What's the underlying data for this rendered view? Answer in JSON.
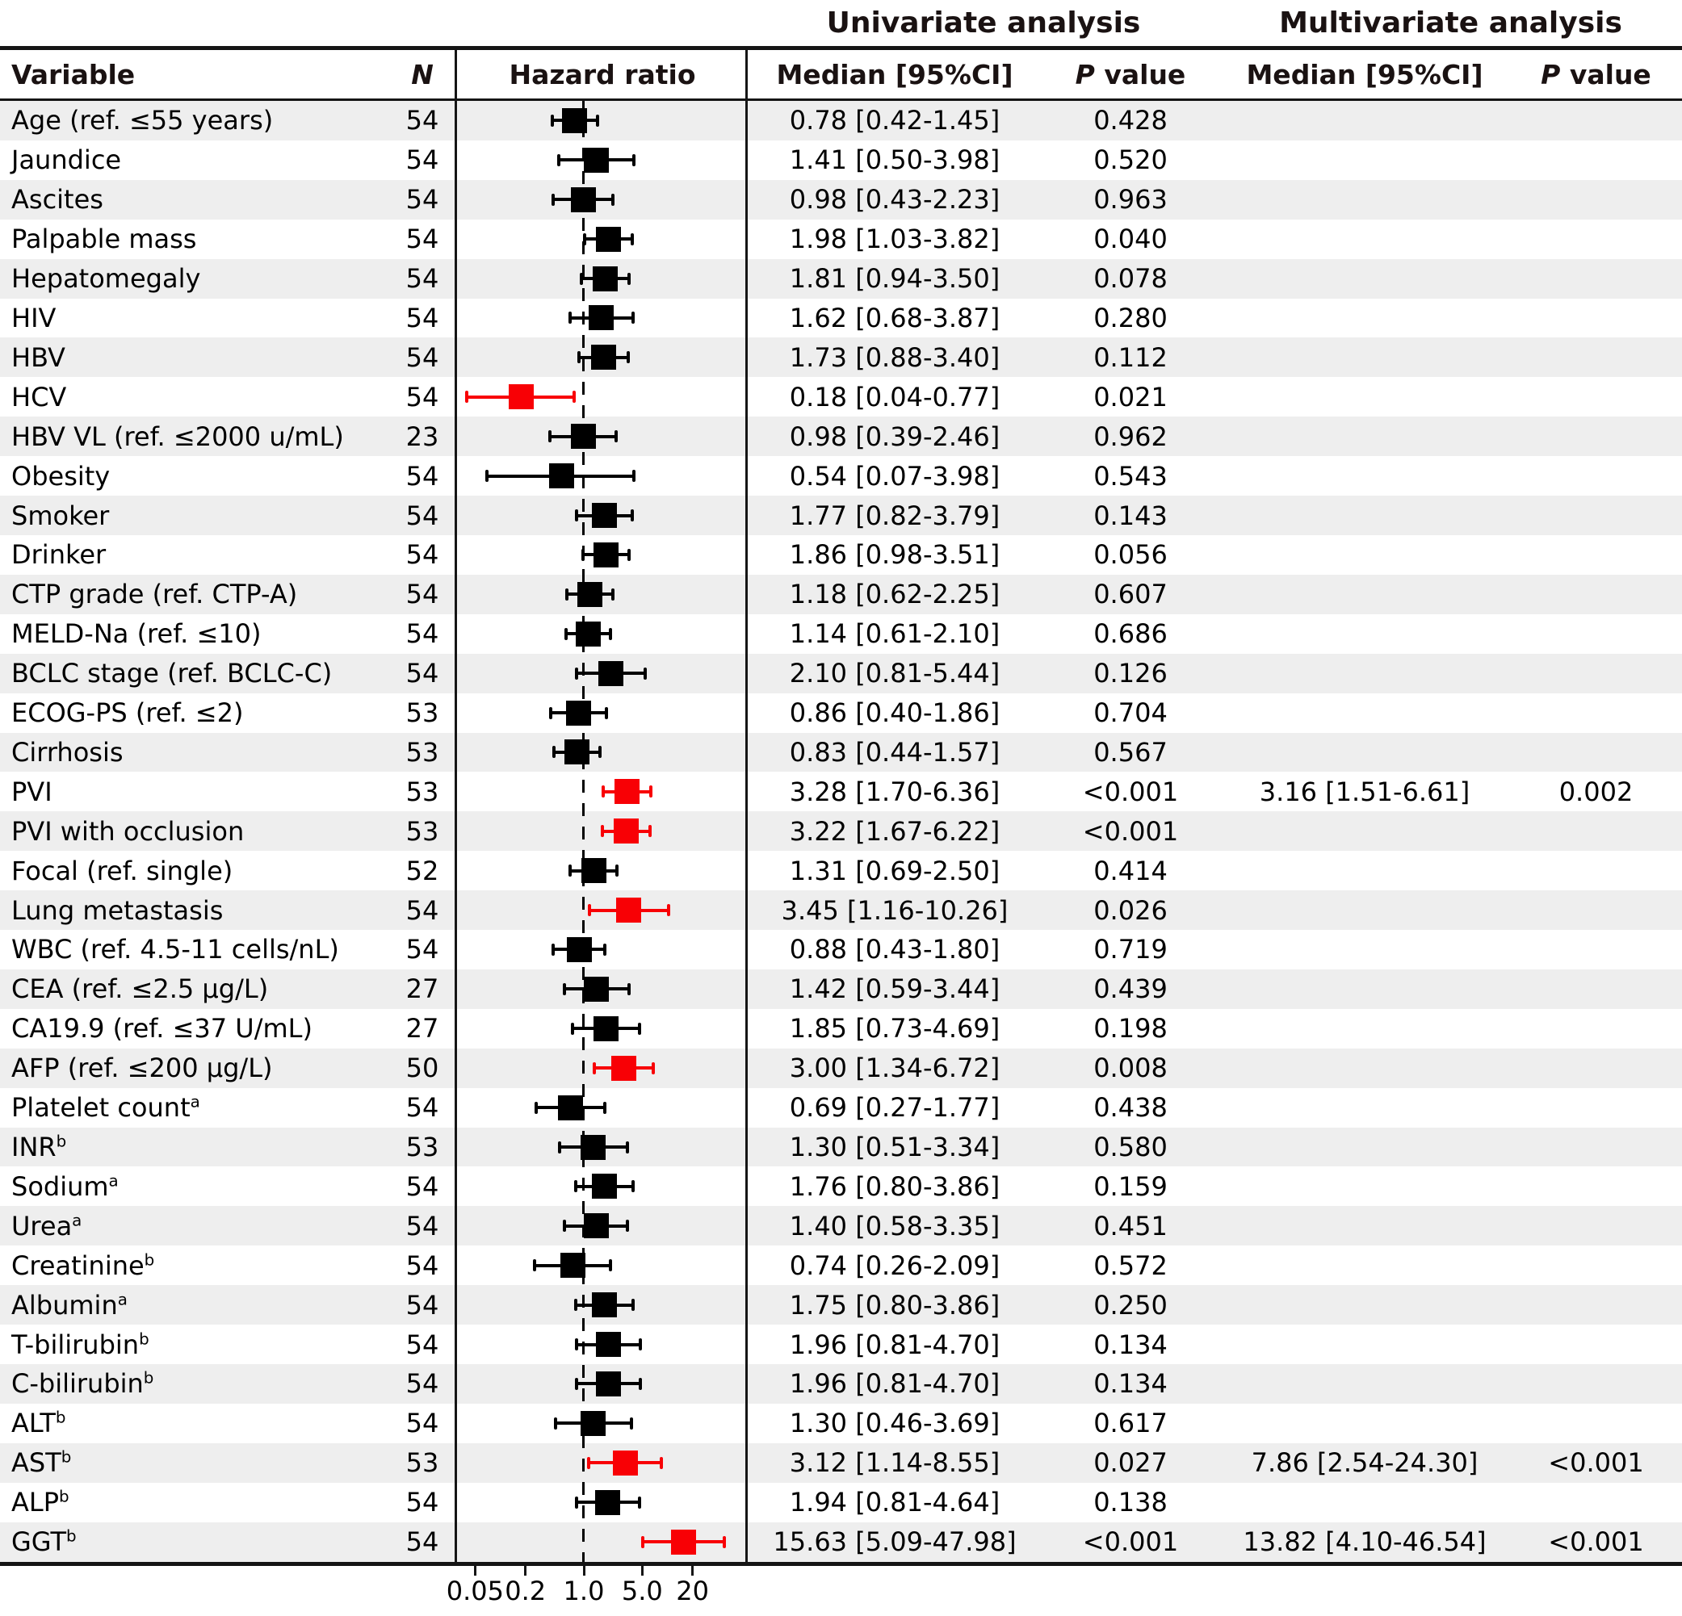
{
  "figure": {
    "group_headers": {
      "univariate": "Univariate analysis",
      "multivariate": "Multivariate analysis"
    },
    "column_headers": {
      "variable": "Variable",
      "n": "N",
      "hazard_ratio": "Hazard ratio",
      "median_ci": "Median [95%CI]",
      "p_label": "P",
      "value_label": " value"
    }
  },
  "colors": {
    "significant": "#f80005",
    "default": "#000000",
    "stripe": "#eeeeee",
    "line": "#151515"
  },
  "chart_data": {
    "type": "scatter",
    "subtype": "forest_plot",
    "title": "Univariate and multivariate analysis of hazard ratios",
    "xlabel": "Hazard ratio",
    "x_scale": "log",
    "axis_ticks": [
      0.05,
      0.2,
      1.0,
      5.0,
      20
    ],
    "axis_tick_labels": [
      "0.05",
      "0.2",
      "1.0",
      "5.0",
      "20"
    ],
    "reference_line": 1.0,
    "rows": [
      {
        "variable": "Age (ref. ≤55 years)",
        "sup": "",
        "n": "54",
        "hr": 0.78,
        "ci": [
          0.42,
          1.45
        ],
        "significant": false,
        "uni_median": "0.78 [0.42-1.45]",
        "uni_p": "0.428",
        "multi_median": "",
        "multi_p": ""
      },
      {
        "variable": "Jaundice",
        "sup": "",
        "n": "54",
        "hr": 1.41,
        "ci": [
          0.5,
          3.98
        ],
        "significant": false,
        "uni_median": "1.41 [0.50-3.98]",
        "uni_p": "0.520",
        "multi_median": "",
        "multi_p": ""
      },
      {
        "variable": "Ascites",
        "sup": "",
        "n": "54",
        "hr": 0.98,
        "ci": [
          0.43,
          2.23
        ],
        "significant": false,
        "uni_median": "0.98 [0.43-2.23]",
        "uni_p": "0.963",
        "multi_median": "",
        "multi_p": ""
      },
      {
        "variable": "Palpable mass",
        "sup": "",
        "n": "54",
        "hr": 1.98,
        "ci": [
          1.03,
          3.82
        ],
        "significant": false,
        "uni_median": "1.98 [1.03-3.82]",
        "uni_p": "0.040",
        "multi_median": "",
        "multi_p": ""
      },
      {
        "variable": "Hepatomegaly",
        "sup": "",
        "n": "54",
        "hr": 1.81,
        "ci": [
          0.94,
          3.5
        ],
        "significant": false,
        "uni_median": "1.81 [0.94-3.50]",
        "uni_p": "0.078",
        "multi_median": "",
        "multi_p": ""
      },
      {
        "variable": "HIV",
        "sup": "",
        "n": "54",
        "hr": 1.62,
        "ci": [
          0.68,
          3.87
        ],
        "significant": false,
        "uni_median": "1.62 [0.68-3.87]",
        "uni_p": "0.280",
        "multi_median": "",
        "multi_p": ""
      },
      {
        "variable": "HBV",
        "sup": "",
        "n": "54",
        "hr": 1.73,
        "ci": [
          0.88,
          3.4
        ],
        "significant": false,
        "uni_median": "1.73 [0.88-3.40]",
        "uni_p": "0.112",
        "multi_median": "",
        "multi_p": ""
      },
      {
        "variable": "HCV",
        "sup": "",
        "n": "54",
        "hr": 0.18,
        "ci": [
          0.04,
          0.77
        ],
        "significant": true,
        "uni_median": "0.18 [0.04-0.77]",
        "uni_p": "0.021",
        "multi_median": "",
        "multi_p": ""
      },
      {
        "variable": "HBV VL (ref. ≤2000 u/mL)",
        "sup": "",
        "n": "23",
        "hr": 0.98,
        "ci": [
          0.39,
          2.46
        ],
        "significant": false,
        "uni_median": "0.98 [0.39-2.46]",
        "uni_p": "0.962",
        "multi_median": "",
        "multi_p": ""
      },
      {
        "variable": "Obesity",
        "sup": "",
        "n": "54",
        "hr": 0.54,
        "ci": [
          0.07,
          3.98
        ],
        "significant": false,
        "uni_median": "0.54 [0.07-3.98]",
        "uni_p": "0.543",
        "multi_median": "",
        "multi_p": ""
      },
      {
        "variable": "Smoker",
        "sup": "",
        "n": "54",
        "hr": 1.77,
        "ci": [
          0.82,
          3.79
        ],
        "significant": false,
        "uni_median": "1.77 [0.82-3.79]",
        "uni_p": "0.143",
        "multi_median": "",
        "multi_p": ""
      },
      {
        "variable": "Drinker",
        "sup": "",
        "n": "54",
        "hr": 1.86,
        "ci": [
          0.98,
          3.51
        ],
        "significant": false,
        "uni_median": "1.86 [0.98-3.51]",
        "uni_p": "0.056",
        "multi_median": "",
        "multi_p": ""
      },
      {
        "variable": "CTP grade (ref. CTP-A)",
        "sup": "",
        "n": "54",
        "hr": 1.18,
        "ci": [
          0.62,
          2.25
        ],
        "significant": false,
        "uni_median": "1.18 [0.62-2.25]",
        "uni_p": "0.607",
        "multi_median": "",
        "multi_p": ""
      },
      {
        "variable": "MELD-Na (ref. ≤10)",
        "sup": "",
        "n": "54",
        "hr": 1.14,
        "ci": [
          0.61,
          2.1
        ],
        "significant": false,
        "uni_median": "1.14 [0.61-2.10]",
        "uni_p": "0.686",
        "multi_median": "",
        "multi_p": ""
      },
      {
        "variable": "BCLC stage (ref. BCLC-C)",
        "sup": "",
        "n": "54",
        "hr": 2.1,
        "ci": [
          0.81,
          5.44
        ],
        "significant": false,
        "uni_median": "2.10 [0.81-5.44]",
        "uni_p": "0.126",
        "multi_median": "",
        "multi_p": ""
      },
      {
        "variable": "ECOG-PS (ref. ≤2)",
        "sup": "",
        "n": "53",
        "hr": 0.86,
        "ci": [
          0.4,
          1.86
        ],
        "significant": false,
        "uni_median": "0.86 [0.40-1.86]",
        "uni_p": "0.704",
        "multi_median": "",
        "multi_p": ""
      },
      {
        "variable": "Cirrhosis",
        "sup": "",
        "n": "53",
        "hr": 0.83,
        "ci": [
          0.44,
          1.57
        ],
        "significant": false,
        "uni_median": "0.83 [0.44-1.57]",
        "uni_p": "0.567",
        "multi_median": "",
        "multi_p": ""
      },
      {
        "variable": "PVI",
        "sup": "",
        "n": "53",
        "hr": 3.28,
        "ci": [
          1.7,
          6.36
        ],
        "significant": true,
        "uni_median": "3.28 [1.70-6.36]",
        "uni_p": "<0.001",
        "multi_median": "3.16 [1.51-6.61]",
        "multi_p": "0.002"
      },
      {
        "variable": "PVI with occlusion",
        "sup": "",
        "n": "53",
        "hr": 3.22,
        "ci": [
          1.67,
          6.22
        ],
        "significant": true,
        "uni_median": "3.22 [1.67-6.22]",
        "uni_p": "<0.001",
        "multi_median": "",
        "multi_p": ""
      },
      {
        "variable": "Focal (ref. single)",
        "sup": "",
        "n": "52",
        "hr": 1.31,
        "ci": [
          0.69,
          2.5
        ],
        "significant": false,
        "uni_median": "1.31 [0.69-2.50]",
        "uni_p": "0.414",
        "multi_median": "",
        "multi_p": ""
      },
      {
        "variable": "Lung metastasis",
        "sup": "",
        "n": "54",
        "hr": 3.45,
        "ci": [
          1.16,
          10.26
        ],
        "significant": true,
        "uni_median": "3.45 [1.16-10.26]",
        "uni_p": "0.026",
        "multi_median": "",
        "multi_p": ""
      },
      {
        "variable": "WBC (ref. 4.5-11 cells/nL)",
        "sup": "",
        "n": "54",
        "hr": 0.88,
        "ci": [
          0.43,
          1.8
        ],
        "significant": false,
        "uni_median": "0.88 [0.43-1.80]",
        "uni_p": "0.719",
        "multi_median": "",
        "multi_p": ""
      },
      {
        "variable": "CEA (ref. ≤2.5 µg/L)",
        "sup": "",
        "n": "27",
        "hr": 1.42,
        "ci": [
          0.59,
          3.44
        ],
        "significant": false,
        "uni_median": "1.42 [0.59-3.44]",
        "uni_p": "0.439",
        "multi_median": "",
        "multi_p": ""
      },
      {
        "variable": "CA19.9 (ref. ≤37 U/mL)",
        "sup": "",
        "n": "27",
        "hr": 1.85,
        "ci": [
          0.73,
          4.69
        ],
        "significant": false,
        "uni_median": "1.85 [0.73-4.69]",
        "uni_p": "0.198",
        "multi_median": "",
        "multi_p": ""
      },
      {
        "variable": "AFP (ref. ≤200 µg/L)",
        "sup": "",
        "n": "50",
        "hr": 3.0,
        "ci": [
          1.34,
          6.72
        ],
        "significant": true,
        "uni_median": "3.00 [1.34-6.72]",
        "uni_p": "0.008",
        "multi_median": "",
        "multi_p": ""
      },
      {
        "variable": "Platelet count",
        "sup": "a",
        "n": "54",
        "hr": 0.69,
        "ci": [
          0.27,
          1.77
        ],
        "significant": false,
        "uni_median": "0.69 [0.27-1.77]",
        "uni_p": "0.438",
        "multi_median": "",
        "multi_p": ""
      },
      {
        "variable": "INR",
        "sup": "b",
        "n": "53",
        "hr": 1.3,
        "ci": [
          0.51,
          3.34
        ],
        "significant": false,
        "uni_median": "1.30 [0.51-3.34]",
        "uni_p": "0.580",
        "multi_median": "",
        "multi_p": ""
      },
      {
        "variable": "Sodium",
        "sup": "a",
        "n": "54",
        "hr": 1.76,
        "ci": [
          0.8,
          3.86
        ],
        "significant": false,
        "uni_median": "1.76 [0.80-3.86]",
        "uni_p": "0.159",
        "multi_median": "",
        "multi_p": ""
      },
      {
        "variable": "Urea",
        "sup": "a",
        "n": "54",
        "hr": 1.4,
        "ci": [
          0.58,
          3.35
        ],
        "significant": false,
        "uni_median": "1.40 [0.58-3.35]",
        "uni_p": "0.451",
        "multi_median": "",
        "multi_p": ""
      },
      {
        "variable": "Creatinine",
        "sup": "b",
        "n": "54",
        "hr": 0.74,
        "ci": [
          0.26,
          2.09
        ],
        "significant": false,
        "uni_median": "0.74 [0.26-2.09]",
        "uni_p": "0.572",
        "multi_median": "",
        "multi_p": ""
      },
      {
        "variable": "Albumin",
        "sup": "a",
        "n": "54",
        "hr": 1.75,
        "ci": [
          0.8,
          3.86
        ],
        "significant": false,
        "uni_median": "1.75 [0.80-3.86]",
        "uni_p": "0.250",
        "multi_median": "",
        "multi_p": ""
      },
      {
        "variable": "T-bilirubin",
        "sup": "b",
        "n": "54",
        "hr": 1.96,
        "ci": [
          0.81,
          4.7
        ],
        "significant": false,
        "uni_median": "1.96 [0.81-4.70]",
        "uni_p": "0.134",
        "multi_median": "",
        "multi_p": ""
      },
      {
        "variable": "C-bilirubin",
        "sup": "b",
        "n": "54",
        "hr": 1.96,
        "ci": [
          0.81,
          4.7
        ],
        "significant": false,
        "uni_median": "1.96 [0.81-4.70]",
        "uni_p": "0.134",
        "multi_median": "",
        "multi_p": ""
      },
      {
        "variable": "ALT",
        "sup": "b",
        "n": "54",
        "hr": 1.3,
        "ci": [
          0.46,
          3.69
        ],
        "significant": false,
        "uni_median": "1.30 [0.46-3.69]",
        "uni_p": "0.617",
        "multi_median": "",
        "multi_p": ""
      },
      {
        "variable": "AST",
        "sup": "b",
        "n": "53",
        "hr": 3.12,
        "ci": [
          1.14,
          8.55
        ],
        "significant": true,
        "uni_median": "3.12 [1.14-8.55]",
        "uni_p": "0.027",
        "multi_median": "7.86 [2.54-24.30]",
        "multi_p": "<0.001"
      },
      {
        "variable": "ALP",
        "sup": "b",
        "n": "54",
        "hr": 1.94,
        "ci": [
          0.81,
          4.64
        ],
        "significant": false,
        "uni_median": "1.94 [0.81-4.64]",
        "uni_p": "0.138",
        "multi_median": "",
        "multi_p": ""
      },
      {
        "variable": "GGT",
        "sup": "b",
        "n": "54",
        "hr": 15.63,
        "ci": [
          5.09,
          47.98
        ],
        "significant": true,
        "uni_median": "15.63 [5.09-47.98]",
        "uni_p": "<0.001",
        "multi_median": "13.82 [4.10-46.54]",
        "multi_p": "<0.001"
      }
    ]
  }
}
